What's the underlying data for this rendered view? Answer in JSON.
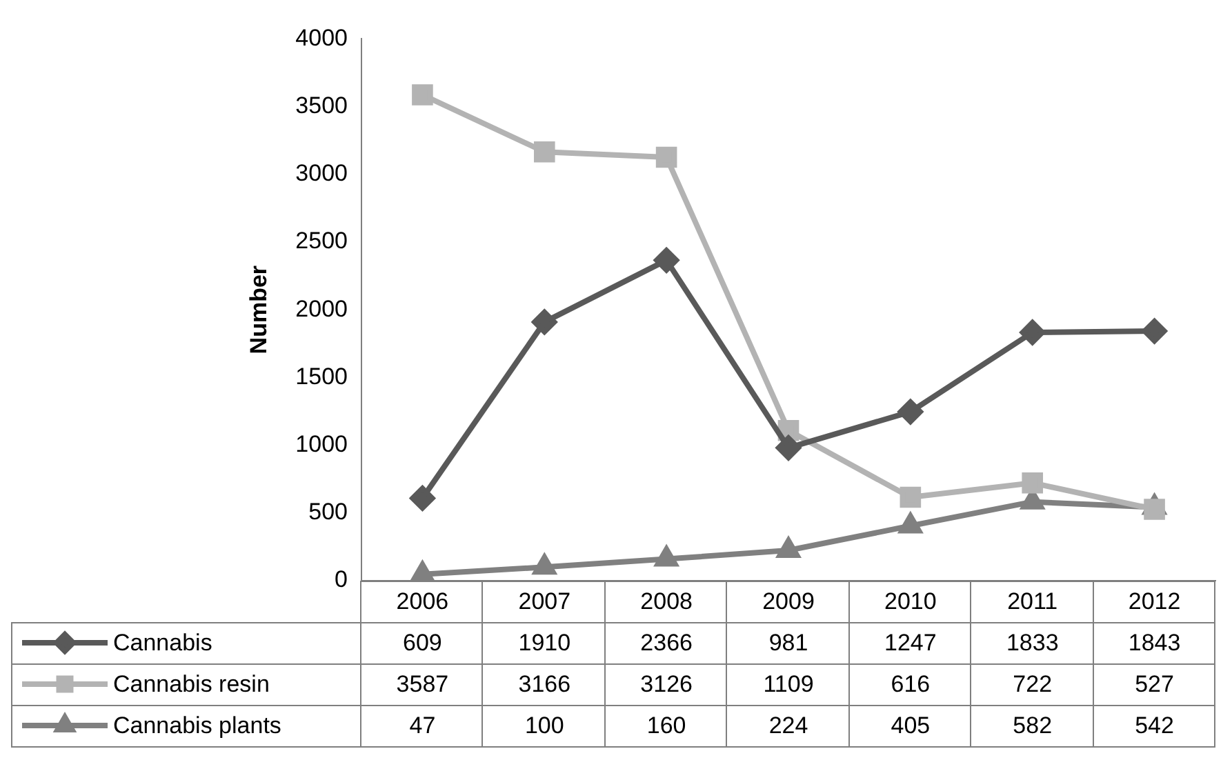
{
  "chart_data": {
    "type": "line",
    "ylabel": "Number",
    "categories": [
      "2006",
      "2007",
      "2008",
      "2009",
      "2010",
      "2011",
      "2012"
    ],
    "series": [
      {
        "name": "Cannabis",
        "color": "#595959",
        "marker": "diamond",
        "values": [
          609,
          1910,
          2366,
          981,
          1247,
          1833,
          1843
        ]
      },
      {
        "name": "Cannabis resin",
        "color": "#b3b3b3",
        "marker": "square",
        "values": [
          3587,
          3166,
          3126,
          1109,
          616,
          722,
          527
        ]
      },
      {
        "name": "Cannabis plants",
        "color": "#808080",
        "marker": "triangle",
        "values": [
          47,
          100,
          160,
          224,
          405,
          582,
          542
        ]
      }
    ],
    "ylim": [
      0,
      4000
    ],
    "yticks": [
      0,
      500,
      1000,
      1500,
      2000,
      2500,
      3000,
      3500,
      4000
    ],
    "grid": false,
    "legend": "bottom",
    "data_labels": true
  }
}
